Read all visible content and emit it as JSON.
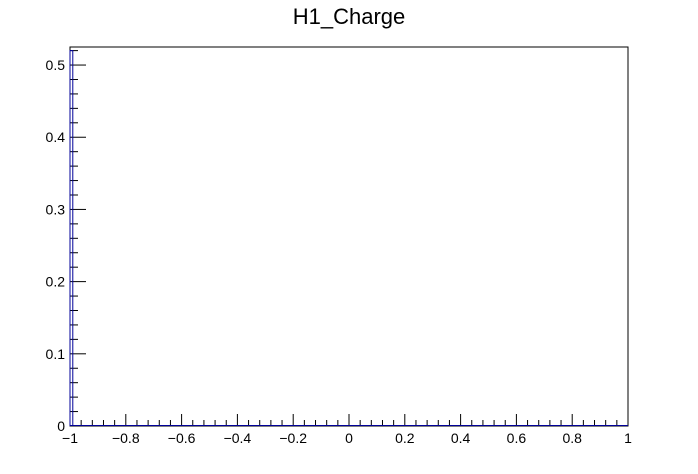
{
  "chart_data": {
    "type": "histogram",
    "title": "H1_Charge",
    "xlabel": "",
    "ylabel": "",
    "xlim": [
      -1,
      1
    ],
    "ylim": [
      0,
      0.525
    ],
    "grid": false,
    "legend": "none",
    "x_ticks": [
      "−1",
      "−0.8",
      "−0.6",
      "−0.4",
      "−0.2",
      "0",
      "0.2",
      "0.4",
      "0.6",
      "0.8",
      "1"
    ],
    "x_tick_values": [
      -1,
      -0.8,
      -0.6,
      -0.4,
      -0.2,
      0,
      0.2,
      0.4,
      0.6,
      0.8,
      1
    ],
    "y_ticks": [
      "0",
      "0.1",
      "0.2",
      "0.3",
      "0.4",
      "0.5"
    ],
    "y_tick_values": [
      0,
      0.1,
      0.2,
      0.3,
      0.4,
      0.5
    ],
    "series": [
      {
        "values": [
          {
            "x0": -1.0,
            "x1": -0.99,
            "y": 0.52
          }
        ],
        "color": "#000099"
      }
    ],
    "colors": {
      "frame": "#000000",
      "histogram_line": "#000099",
      "background": "#ffffff"
    }
  }
}
